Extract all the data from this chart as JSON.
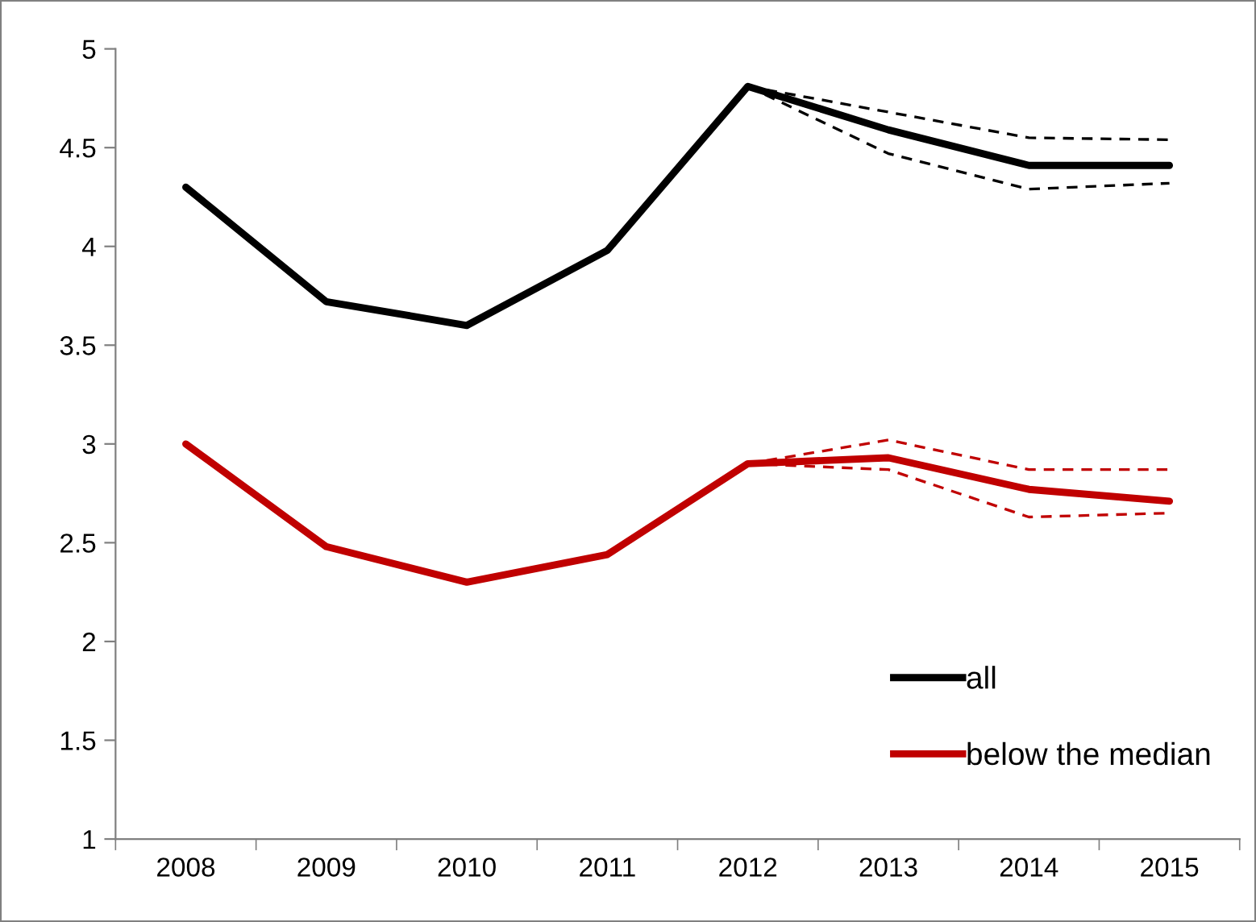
{
  "chart_data": {
    "type": "line",
    "categories": [
      "2008",
      "2009",
      "2010",
      "2011",
      "2012",
      "2013",
      "2014",
      "2015"
    ],
    "series": [
      {
        "name": "all",
        "color": "#000000",
        "values": [
          4.3,
          3.72,
          3.6,
          3.98,
          4.81,
          4.59,
          4.41,
          4.41
        ]
      },
      {
        "color": "#000000",
        "line_style": "dashed",
        "values": [
          null,
          null,
          null,
          null,
          4.81,
          4.68,
          4.55,
          4.54
        ]
      },
      {
        "color": "#000000",
        "line_style": "dashed",
        "values": [
          null,
          null,
          null,
          null,
          4.81,
          4.47,
          4.29,
          4.32
        ]
      },
      {
        "name": "below the median",
        "color": "#c00000",
        "values": [
          3.0,
          2.48,
          2.3,
          2.44,
          2.9,
          2.93,
          2.77,
          2.71
        ]
      },
      {
        "color": "#c00000",
        "line_style": "dashed",
        "values": [
          null,
          null,
          null,
          null,
          2.9,
          3.02,
          2.87,
          2.87
        ]
      },
      {
        "color": "#c00000",
        "line_style": "dashed",
        "values": [
          null,
          null,
          null,
          null,
          2.9,
          2.87,
          2.63,
          2.65
        ]
      }
    ],
    "ylim": [
      1,
      5
    ],
    "yticks": [
      1,
      1.5,
      2,
      2.5,
      3,
      3.5,
      4,
      4.5,
      5
    ],
    "grid": false,
    "legend": "bottom right",
    "line_style": "solid"
  }
}
